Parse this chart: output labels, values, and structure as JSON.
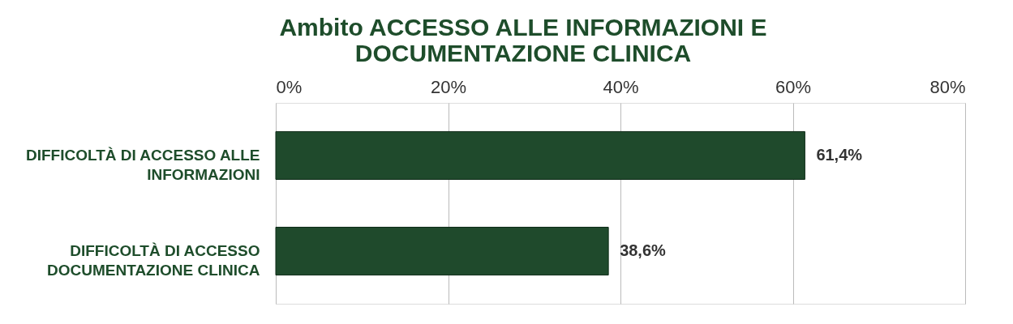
{
  "chart_data": {
    "type": "bar",
    "orientation": "horizontal",
    "title": [
      "Ambito ACCESSO ALLE INFORMAZIONI E",
      "DOCUMENTAZIONE CLINICA"
    ],
    "categories": [
      "DIFFICOLTÀ DI ACCESSO ALLE INFORMAZIONI",
      "DIFFICOLTÀ DI ACCESSO DOCUMENTAZIONE CLINICA"
    ],
    "values": [
      61.4,
      38.6
    ],
    "value_labels": [
      "61,4%",
      "38,6%"
    ],
    "color": "#1f4a2c",
    "xlim": [
      0,
      80
    ],
    "xticks": [
      {
        "value": 0,
        "label": "0%"
      },
      {
        "value": 20,
        "label": "20%"
      },
      {
        "value": 40,
        "label": "40%"
      },
      {
        "value": 60,
        "label": "60%"
      },
      {
        "value": 80,
        "label": "80%"
      }
    ],
    "grid": "x"
  }
}
